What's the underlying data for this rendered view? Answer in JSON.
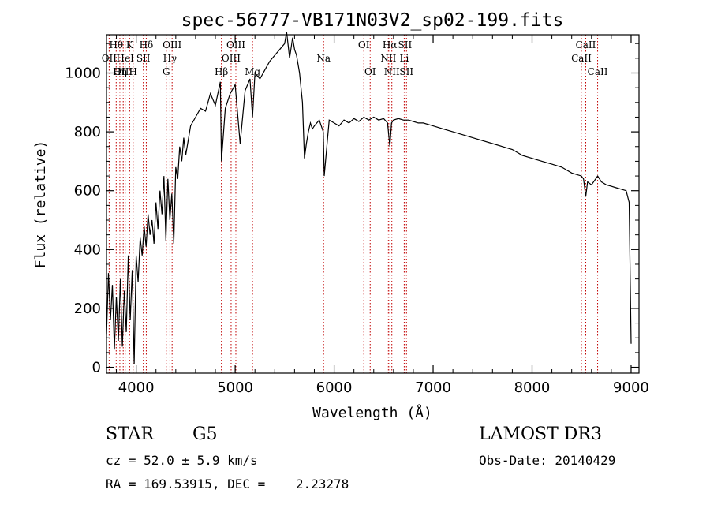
{
  "chart_data": {
    "type": "line",
    "title": "spec-56777-VB171N03V2_sp02-199.fits",
    "xlabel": "Wavelength (Å)",
    "ylabel": "Flux (relative)",
    "xlim": [
      3700,
      9080
    ],
    "ylim": [
      -20,
      1130
    ],
    "x_ticks": [
      4000,
      5000,
      6000,
      7000,
      8000,
      9000
    ],
    "y_ticks": [
      0,
      200,
      400,
      600,
      800,
      1000
    ],
    "x_tick_labels": [
      "4000",
      "5000",
      "6000",
      "7000",
      "8000",
      "9000"
    ],
    "y_tick_labels": [
      "0",
      "200",
      "400",
      "600",
      "800",
      "1000"
    ],
    "grid": false,
    "series": [
      {
        "color": "#000000",
        "x": [
          3700,
          3720,
          3740,
          3760,
          3780,
          3800,
          3820,
          3840,
          3860,
          3880,
          3900,
          3920,
          3940,
          3960,
          3980,
          4000,
          4020,
          4040,
          4060,
          4080,
          4100,
          4120,
          4140,
          4160,
          4180,
          4200,
          4220,
          4240,
          4260,
          4280,
          4300,
          4320,
          4340,
          4360,
          4380,
          4400,
          4420,
          4440,
          4460,
          4480,
          4500,
          4550,
          4600,
          4650,
          4700,
          4750,
          4800,
          4850,
          4861,
          4900,
          4950,
          5000,
          5050,
          5100,
          5150,
          5175,
          5200,
          5250,
          5300,
          5350,
          5400,
          5450,
          5500,
          5520,
          5550,
          5580,
          5600,
          5620,
          5650,
          5680,
          5700,
          5720,
          5740,
          5760,
          5780,
          5800,
          5850,
          5890,
          5900,
          5950,
          6000,
          6050,
          6100,
          6150,
          6200,
          6250,
          6300,
          6350,
          6400,
          6450,
          6500,
          6540,
          6563,
          6580,
          6600,
          6650,
          6700,
          6750,
          6800,
          6850,
          6900,
          7000,
          7100,
          7200,
          7300,
          7400,
          7500,
          7600,
          7700,
          7800,
          7900,
          8000,
          8100,
          8200,
          8300,
          8400,
          8498,
          8520,
          8542,
          8560,
          8600,
          8662,
          8700,
          8750,
          8800,
          8850,
          8900,
          8950,
          8980,
          9000
        ],
        "values": [
          110,
          320,
          160,
          280,
          60,
          240,
          90,
          300,
          70,
          260,
          120,
          380,
          160,
          330,
          10,
          380,
          290,
          440,
          380,
          480,
          410,
          520,
          450,
          500,
          420,
          560,
          470,
          600,
          520,
          650,
          430,
          640,
          500,
          590,
          420,
          680,
          640,
          750,
          700,
          780,
          720,
          820,
          850,
          880,
          870,
          930,
          890,
          970,
          700,
          880,
          930,
          960,
          760,
          940,
          980,
          850,
          1000,
          980,
          1010,
          1040,
          1060,
          1080,
          1100,
          1140,
          1050,
          1120,
          1080,
          1060,
          1000,
          900,
          710,
          760,
          800,
          830,
          810,
          820,
          840,
          800,
          650,
          840,
          830,
          820,
          840,
          830,
          845,
          835,
          850,
          840,
          850,
          840,
          845,
          830,
          750,
          830,
          840,
          845,
          840,
          840,
          835,
          830,
          830,
          820,
          810,
          800,
          790,
          780,
          770,
          760,
          750,
          740,
          720,
          710,
          700,
          690,
          680,
          660,
          650,
          640,
          580,
          630,
          620,
          650,
          630,
          620,
          615,
          610,
          605,
          600,
          560,
          80
        ]
      }
    ],
    "emission_lines": [
      {
        "wavelength": 3727,
        "label": "OII",
        "row": 2
      },
      {
        "wavelength": 3798,
        "label": "Hθ",
        "row": 1
      },
      {
        "wavelength": 3835,
        "label": "Hη",
        "row": 3
      },
      {
        "wavelength": 3869,
        "label": "OIII",
        "row": 3
      },
      {
        "wavelength": 3889,
        "label": "HeI",
        "row": 2
      },
      {
        "wavelength": 3934,
        "label": "K",
        "row": 1
      },
      {
        "wavelength": 3969,
        "label": "H",
        "row": 3
      },
      {
        "wavelength": 4072,
        "label": "SII",
        "row": 2
      },
      {
        "wavelength": 4102,
        "label": "Hδ",
        "row": 1
      },
      {
        "wavelength": 4304,
        "label": "G",
        "row": 3
      },
      {
        "wavelength": 4341,
        "label": "Hγ",
        "row": 2
      },
      {
        "wavelength": 4363,
        "label": "OIII",
        "row": 1
      },
      {
        "wavelength": 4861,
        "label": "Hβ",
        "row": 3
      },
      {
        "wavelength": 4959,
        "label": "OIII",
        "row": 2
      },
      {
        "wavelength": 5007,
        "label": "OIII",
        "row": 1
      },
      {
        "wavelength": 5175,
        "label": "Mg",
        "row": 3
      },
      {
        "wavelength": 5893,
        "label": "Na",
        "row": 2
      },
      {
        "wavelength": 6300,
        "label": "OI",
        "row": 1
      },
      {
        "wavelength": 6364,
        "label": "OI",
        "row": 3
      },
      {
        "wavelength": 6548,
        "label": "NII",
        "row": 2
      },
      {
        "wavelength": 6563,
        "label": "Hα",
        "row": 1
      },
      {
        "wavelength": 6583,
        "label": "NII",
        "row": 3
      },
      {
        "wavelength": 6708,
        "label": "Li",
        "row": 2
      },
      {
        "wavelength": 6716,
        "label": "SII",
        "row": 1
      },
      {
        "wavelength": 6731,
        "label": "SII",
        "row": 3
      },
      {
        "wavelength": 8498,
        "label": "CaII",
        "row": 2
      },
      {
        "wavelength": 8542,
        "label": "CaII",
        "row": 1
      },
      {
        "wavelength": 8662,
        "label": "CaII",
        "row": 3
      }
    ],
    "line_marker_color": "#c00000"
  },
  "info": {
    "object_class": "STAR",
    "subclass": "G5",
    "survey": "LAMOST DR3",
    "cz": "cz = 52.0 ± 5.9 km/s",
    "obs_date": "Obs-Date: 20140429",
    "coords": "RA = 169.53915, DEC =    2.23278"
  }
}
